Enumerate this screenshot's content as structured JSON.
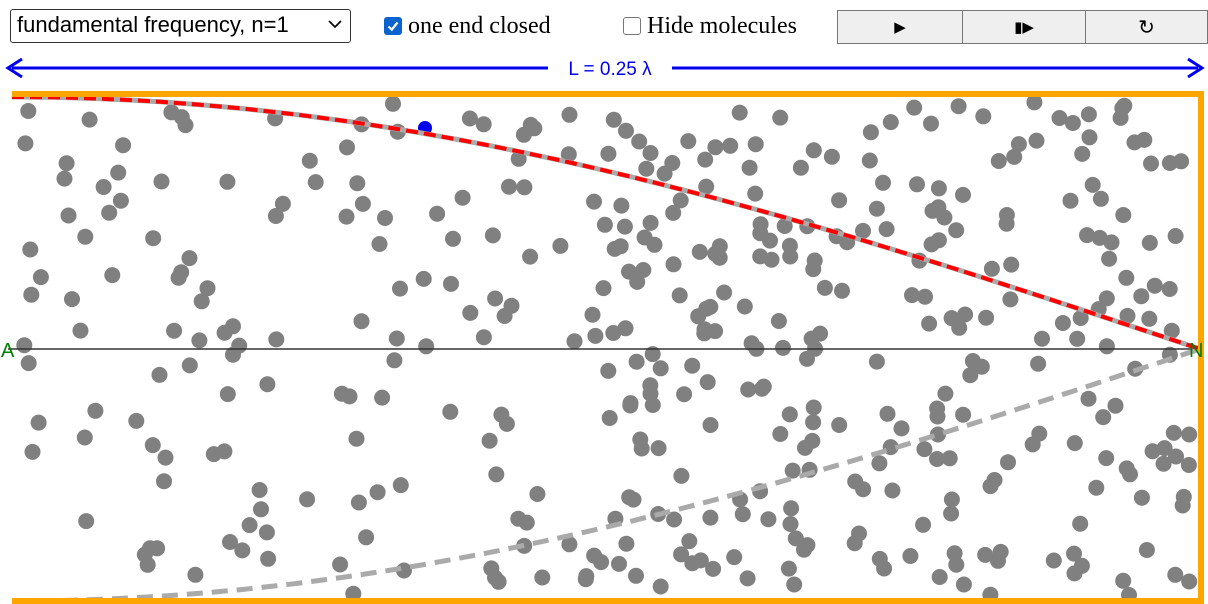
{
  "toolbar": {
    "mode_select": {
      "value": "fundamental frequency, n=1",
      "icon": "chevron-down-icon"
    },
    "one_end_closed": {
      "label": "one end closed",
      "checked": true
    },
    "hide_molecules": {
      "label": "Hide molecules",
      "checked": false
    },
    "buttons": [
      {
        "name": "play-button",
        "glyph": "▶",
        "icon": "play-icon"
      },
      {
        "name": "step-button",
        "glyph": "▮▶",
        "icon": "step-forward-icon"
      },
      {
        "name": "reset-button",
        "glyph": "↻",
        "icon": "reset-icon"
      }
    ]
  },
  "tube": {
    "length_label": "L = 0.25 λ",
    "left_end_label": "A",
    "right_end_label": "N",
    "molecule_count": 420,
    "tracked_molecule_color": "#0000ee",
    "colors": {
      "wall": "#ffa500",
      "molecule": "#808080",
      "wave": "#ff0000",
      "envelope": "#aaaaaa",
      "arrow": "#0000ee",
      "end_labels": "#008000"
    }
  }
}
